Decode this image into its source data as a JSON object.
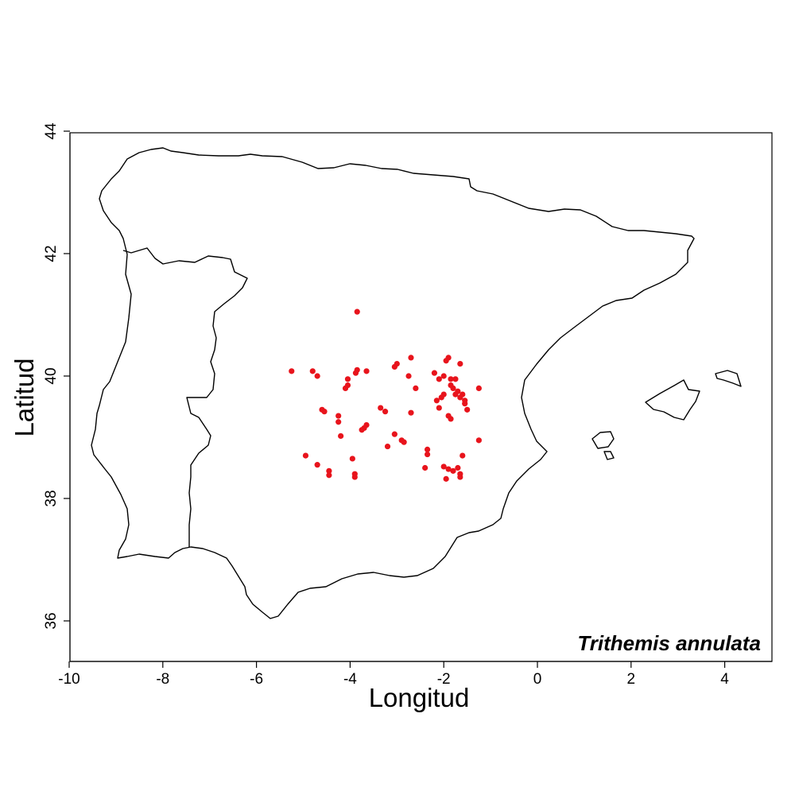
{
  "chart_data": {
    "type": "scatter",
    "title": "",
    "xlabel": "Longitud",
    "ylabel": "Latitud",
    "xlim": [
      -10,
      5
    ],
    "ylim": [
      35.35,
      44
    ],
    "x_ticks": [
      "-10",
      "-8",
      "-6",
      "-4",
      "-2",
      "0",
      "2",
      "4"
    ],
    "y_ticks": [
      "36",
      "38",
      "40",
      "42",
      "44"
    ],
    "annotation": "Trithemis annulata",
    "point_color": "#e8141c",
    "series": [
      {
        "name": "",
        "points": [
          [
            -3.85,
            41.05
          ],
          [
            -5.25,
            40.08
          ],
          [
            -4.8,
            40.08
          ],
          [
            -4.7,
            40.0
          ],
          [
            -4.05,
            39.95
          ],
          [
            -3.88,
            40.05
          ],
          [
            -3.85,
            40.1
          ],
          [
            -3.65,
            40.08
          ],
          [
            -4.1,
            39.8
          ],
          [
            -4.05,
            39.85
          ],
          [
            -4.6,
            39.45
          ],
          [
            -4.55,
            39.42
          ],
          [
            -4.25,
            39.35
          ],
          [
            -4.25,
            39.25
          ],
          [
            -4.2,
            39.02
          ],
          [
            -3.75,
            39.12
          ],
          [
            -3.7,
            39.15
          ],
          [
            -3.65,
            39.2
          ],
          [
            -3.35,
            39.48
          ],
          [
            -3.25,
            39.42
          ],
          [
            -3.05,
            40.15
          ],
          [
            -3.0,
            40.2
          ],
          [
            -2.7,
            40.3
          ],
          [
            -2.75,
            40.0
          ],
          [
            -2.6,
            39.8
          ],
          [
            -3.05,
            39.05
          ],
          [
            -2.9,
            38.95
          ],
          [
            -2.85,
            38.92
          ],
          [
            -3.2,
            38.85
          ],
          [
            -2.7,
            39.4
          ],
          [
            -4.95,
            38.7
          ],
          [
            -4.7,
            38.55
          ],
          [
            -4.45,
            38.45
          ],
          [
            -4.45,
            38.38
          ],
          [
            -3.95,
            38.65
          ],
          [
            -3.9,
            38.4
          ],
          [
            -3.9,
            38.35
          ],
          [
            -2.35,
            38.8
          ],
          [
            -2.35,
            38.72
          ],
          [
            -2.4,
            38.5
          ],
          [
            -2.2,
            40.05
          ],
          [
            -2.1,
            39.95
          ],
          [
            -2.0,
            40.0
          ],
          [
            -1.95,
            40.25
          ],
          [
            -1.9,
            40.3
          ],
          [
            -1.85,
            39.95
          ],
          [
            -1.75,
            39.95
          ],
          [
            -1.65,
            40.2
          ],
          [
            -2.15,
            39.6
          ],
          [
            -2.05,
            39.65
          ],
          [
            -2.0,
            39.7
          ],
          [
            -2.1,
            39.48
          ],
          [
            -1.85,
            39.85
          ],
          [
            -1.8,
            39.8
          ],
          [
            -1.75,
            39.7
          ],
          [
            -1.7,
            39.75
          ],
          [
            -1.65,
            39.65
          ],
          [
            -1.6,
            39.7
          ],
          [
            -1.55,
            39.55
          ],
          [
            -1.5,
            39.45
          ],
          [
            -1.55,
            39.6
          ],
          [
            -1.9,
            39.35
          ],
          [
            -1.85,
            39.3
          ],
          [
            -1.25,
            39.8
          ],
          [
            -1.25,
            38.95
          ],
          [
            -1.6,
            38.7
          ],
          [
            -2.0,
            38.52
          ],
          [
            -1.9,
            38.48
          ],
          [
            -1.8,
            38.45
          ],
          [
            -1.7,
            38.5
          ],
          [
            -1.65,
            38.4
          ],
          [
            -1.65,
            38.35
          ],
          [
            -1.95,
            38.32
          ]
        ]
      }
    ]
  }
}
